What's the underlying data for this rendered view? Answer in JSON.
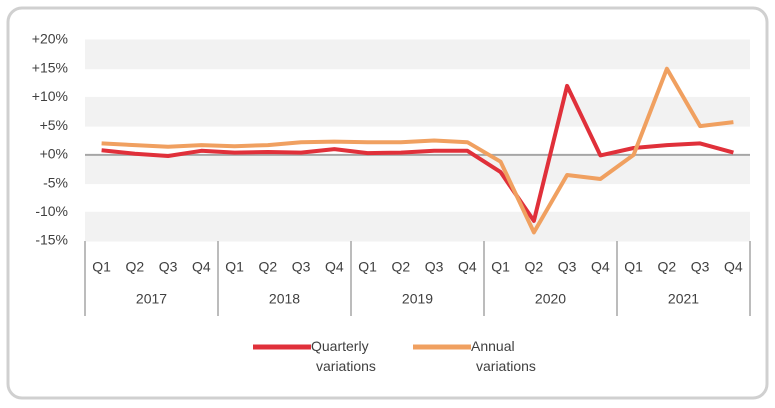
{
  "chart_data": {
    "type": "line",
    "categories": [
      "Q1",
      "Q2",
      "Q3",
      "Q4",
      "Q1",
      "Q2",
      "Q3",
      "Q4",
      "Q1",
      "Q2",
      "Q3",
      "Q4",
      "Q1",
      "Q2",
      "Q3",
      "Q4",
      "Q1",
      "Q2",
      "Q3",
      "Q4"
    ],
    "category_groups": [
      "2017",
      "2018",
      "2019",
      "2020",
      "2021"
    ],
    "series": [
      {
        "name": "Quarterly variations",
        "color": "#e0303a",
        "values": [
          0.8,
          0.2,
          -0.2,
          0.7,
          0.4,
          0.5,
          0.4,
          1.0,
          0.3,
          0.4,
          0.7,
          0.7,
          -3.0,
          -11.5,
          12.0,
          -0.1,
          1.2,
          1.7,
          2.0,
          0.4
        ]
      },
      {
        "name": "Annual variations",
        "color": "#f0a060",
        "values": [
          2.0,
          1.7,
          1.4,
          1.7,
          1.5,
          1.7,
          2.2,
          2.3,
          2.2,
          2.2,
          2.5,
          2.2,
          -1.2,
          -13.5,
          -3.5,
          -4.2,
          0.0,
          15.0,
          5.0,
          5.7
        ]
      }
    ],
    "ylim": [
      -15,
      20
    ],
    "yticks": [
      {
        "value": 20,
        "label": "+20%"
      },
      {
        "value": 15,
        "label": "+15%"
      },
      {
        "value": 10,
        "label": "+10%"
      },
      {
        "value": 5,
        "label": "+5%"
      },
      {
        "value": 0,
        "label": "+0%"
      },
      {
        "value": -5,
        "label": "-5%"
      },
      {
        "value": -10,
        "label": "-10%"
      },
      {
        "value": -15,
        "label": "-15%"
      }
    ],
    "grid": true,
    "legend": "bottom"
  }
}
